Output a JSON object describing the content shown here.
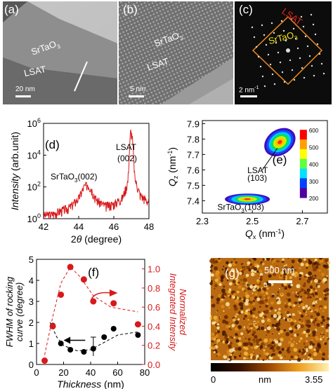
{
  "panel_a": {
    "label": "(a)",
    "film": "SrTaO",
    "film_sub": "3",
    "substrate": "LSAT",
    "scale": "20 nm"
  },
  "panel_b": {
    "label": "(b)",
    "film": "SrTaO",
    "film_sub": "3",
    "substrate": "LSAT",
    "scale": "5 nm"
  },
  "panel_c": {
    "label": "(c)",
    "substrate": "LSAT",
    "film": "SrTaO",
    "film_sub": "3",
    "scale": "2 nm",
    "scale_sup": "-1",
    "colors": {
      "lsat": "#e8241c",
      "film": "#f2e21a",
      "box": "#f08a1e"
    }
  },
  "chart_data": [
    {
      "type": "line",
      "panel": "(d)",
      "xlabel": "2θ (degree)",
      "ylabel": "Intensity (arb.unit)",
      "xlim": [
        42,
        48
      ],
      "ylim": [
        1,
        1000000
      ],
      "yscale": "log",
      "xticks": [
        42,
        44,
        46,
        48
      ],
      "yticks": [
        "10^0",
        "10^2",
        "10^4",
        "10^6"
      ],
      "annotations": [
        "LSAT (002)",
        "SrTaO3(002)"
      ],
      "series": [
        {
          "color": "#d7191c",
          "x": [
            42.0,
            42.5,
            43.0,
            43.5,
            44.0,
            44.3,
            44.5,
            44.7,
            45.0,
            45.5,
            46.0,
            46.5,
            46.8,
            46.95,
            47.05,
            47.2,
            47.5,
            48.0
          ],
          "y": [
            1.5,
            1.8,
            3,
            5,
            18,
            90,
            140,
            80,
            15,
            6,
            8,
            20,
            200,
            300000,
            150000,
            300,
            30,
            10
          ]
        }
      ]
    },
    {
      "type": "heatmap",
      "panel": "(e)",
      "xlabel": "Qx (nm-1)",
      "ylabel": "Qz (nm-1)",
      "xlim": [
        2.3,
        2.8
      ],
      "ylim": [
        7.32,
        7.92
      ],
      "xticks": [
        2.3,
        2.5,
        2.7
      ],
      "yticks": [
        7.4,
        7.5,
        7.6,
        7.7,
        7.8,
        7.9
      ],
      "colorbar_ticks": [
        200,
        300,
        400,
        500,
        600
      ],
      "annotations": [
        "LSAT (103)",
        "SrTaO3(103)"
      ],
      "peaks": [
        {
          "name": "LSAT (103)",
          "qx": 2.61,
          "qz": 7.78
        },
        {
          "name": "SrTaO3(103)",
          "qx": 2.48,
          "qz": 7.41
        }
      ]
    },
    {
      "type": "scatter",
      "panel": "(f)",
      "xlabel": "Thickness (nm)",
      "ylabel": "FWHM of rocking curve (degree)",
      "ylabel2": "Normalized Integrated Intensity",
      "xlim": [
        0,
        80
      ],
      "ylim": [
        0,
        5
      ],
      "ylim2": [
        0,
        1.1
      ],
      "xticks": [
        0,
        20,
        40,
        60,
        80
      ],
      "yticks": [
        0,
        1,
        2,
        3,
        4,
        5
      ],
      "yticks2": [
        0.0,
        0.2,
        0.4,
        0.6,
        0.8,
        1.0
      ],
      "series": [
        {
          "axis": "left",
          "color": "#000000",
          "x": [
            12,
            18,
            25,
            35,
            42,
            50,
            57,
            75
          ],
          "y": [
            1.85,
            1.0,
            0.7,
            0.6,
            0.75,
            1.3,
            1.7,
            1.4
          ]
        },
        {
          "axis": "right",
          "color": "#d7191c",
          "x": [
            6,
            12,
            18,
            25,
            35,
            42,
            57,
            75
          ],
          "y": [
            0.04,
            0.4,
            0.73,
            1.02,
            0.89,
            0.66,
            0.64,
            0.42
          ]
        }
      ],
      "fit_left": {
        "x": [
          10,
          15,
          20,
          30,
          40,
          50,
          60,
          75
        ],
        "y": [
          2.0,
          1.3,
          0.9,
          0.65,
          0.7,
          1.05,
          1.4,
          1.55
        ]
      },
      "fit_right": {
        "x": [
          6,
          12,
          18,
          25,
          32,
          42,
          55,
          75
        ],
        "y": [
          0.1,
          0.5,
          0.85,
          1.02,
          0.92,
          0.72,
          0.6,
          0.55
        ]
      }
    }
  ],
  "panel_g": {
    "label": "(g)",
    "scale": "500 nm",
    "cb_min": "0",
    "cb_unit": "nm",
    "cb_max": "3.55"
  }
}
